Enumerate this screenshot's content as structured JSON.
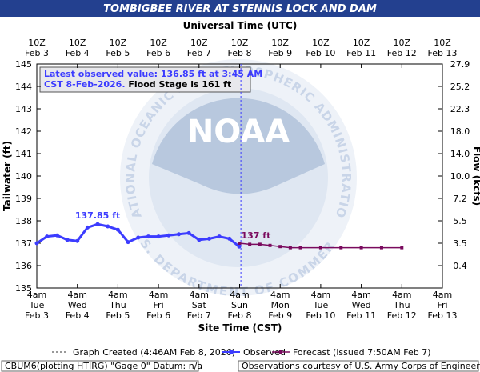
{
  "chart_data": {
    "type": "line",
    "title": "TOMBIGBEE RIVER AT STENNIS LOCK AND DAM",
    "x2_axis_label": "Universal Time (UTC)",
    "x_axis_label": "Site Time (CST)",
    "y_axis_label": "Tailwater (ft)",
    "y2_axis_label": "Flow (kcfs)",
    "xlim": [
      "2026-02-03T04:00",
      "2026-02-13T04:00"
    ],
    "xticks": [
      {
        "value": "2026-02-03T04:00",
        "label": [
          "4am",
          "Tue",
          "Feb 3"
        ]
      },
      {
        "value": "2026-02-04T04:00",
        "label": [
          "4am",
          "Wed",
          "Feb 4"
        ]
      },
      {
        "value": "2026-02-05T04:00",
        "label": [
          "4am",
          "Thu",
          "Feb 5"
        ]
      },
      {
        "value": "2026-02-06T04:00",
        "label": [
          "4am",
          "Fri",
          "Feb 6"
        ]
      },
      {
        "value": "2026-02-07T04:00",
        "label": [
          "4am",
          "Sat",
          "Feb 7"
        ]
      },
      {
        "value": "2026-02-08T04:00",
        "label": [
          "4am",
          "Sun",
          "Feb 8"
        ]
      },
      {
        "value": "2026-02-09T04:00",
        "label": [
          "4am",
          "Mon",
          "Feb 9"
        ]
      },
      {
        "value": "2026-02-10T04:00",
        "label": [
          "4am",
          "Tue",
          "Feb 10"
        ]
      },
      {
        "value": "2026-02-11T04:00",
        "label": [
          "4am",
          "Wed",
          "Feb 11"
        ]
      },
      {
        "value": "2026-02-12T04:00",
        "label": [
          "4am",
          "Thu",
          "Feb 12"
        ]
      },
      {
        "value": "2026-02-13T04:00",
        "label": [
          "4am",
          "Fri",
          "Feb 13"
        ]
      }
    ],
    "x2ticks": [
      {
        "value": "2026-02-03T04:00",
        "label": [
          "10Z",
          "Feb 3"
        ]
      },
      {
        "value": "2026-02-04T04:00",
        "label": [
          "10Z",
          "Feb 4"
        ]
      },
      {
        "value": "2026-02-05T04:00",
        "label": [
          "10Z",
          "Feb 5"
        ]
      },
      {
        "value": "2026-02-06T04:00",
        "label": [
          "10Z",
          "Feb 6"
        ]
      },
      {
        "value": "2026-02-07T04:00",
        "label": [
          "10Z",
          "Feb 7"
        ]
      },
      {
        "value": "2026-02-08T04:00",
        "label": [
          "10Z",
          "Feb 8"
        ]
      },
      {
        "value": "2026-02-09T04:00",
        "label": [
          "10Z",
          "Feb 9"
        ]
      },
      {
        "value": "2026-02-10T04:00",
        "label": [
          "10Z",
          "Feb 10"
        ]
      },
      {
        "value": "2026-02-11T04:00",
        "label": [
          "10Z",
          "Feb 11"
        ]
      },
      {
        "value": "2026-02-12T04:00",
        "label": [
          "10Z",
          "Feb 12"
        ]
      },
      {
        "value": "2026-02-13T04:00",
        "label": [
          "10Z",
          "Feb 13"
        ]
      }
    ],
    "ylim": [
      135,
      145
    ],
    "yticks": [
      135,
      136,
      137,
      138,
      139,
      140,
      141,
      142,
      143,
      144,
      145
    ],
    "y2ticks": [
      0.4,
      3.5,
      5.5,
      7.2,
      {
        "value": 10,
        "label": "10.0"
      },
      {
        "value": 14,
        "label": "14.0"
      },
      {
        "value": 18,
        "label": "18.0"
      },
      22.3,
      25.2,
      27.9
    ],
    "grid": false,
    "created_time": "2026-02-08T04:46",
    "series": [
      {
        "name": "Observed",
        "color": "#3c3cff",
        "x": [
          "2026-02-03T04:00",
          "2026-02-03T10:00",
          "2026-02-03T16:00",
          "2026-02-03T22:00",
          "2026-02-04T04:00",
          "2026-02-04T10:00",
          "2026-02-04T16:00",
          "2026-02-04T22:00",
          "2026-02-05T04:00",
          "2026-02-05T10:00",
          "2026-02-05T16:00",
          "2026-02-05T22:00",
          "2026-02-06T04:00",
          "2026-02-06T10:00",
          "2026-02-06T16:00",
          "2026-02-06T22:00",
          "2026-02-07T04:00",
          "2026-02-07T10:00",
          "2026-02-07T16:00",
          "2026-02-07T22:00",
          "2026-02-08T03:45"
        ],
        "values": [
          137.0,
          137.3,
          137.35,
          137.15,
          137.1,
          137.7,
          137.85,
          137.75,
          137.6,
          137.05,
          137.25,
          137.3,
          137.3,
          137.35,
          137.4,
          137.45,
          137.15,
          137.2,
          137.3,
          137.2,
          136.85
        ]
      },
      {
        "name": "Forecast (issued 7:50AM Feb 7)",
        "color": "#7a0a5e",
        "x": [
          "2026-02-08T04:00",
          "2026-02-08T10:00",
          "2026-02-08T16:00",
          "2026-02-08T22:00",
          "2026-02-09T04:00",
          "2026-02-09T10:00",
          "2026-02-09T16:00",
          "2026-02-10T04:00",
          "2026-02-10T16:00",
          "2026-02-11T04:00",
          "2026-02-11T16:00",
          "2026-02-12T04:00"
        ],
        "values": [
          137.0,
          136.95,
          136.95,
          136.9,
          136.85,
          136.8,
          136.8,
          136.8,
          136.8,
          136.8,
          136.8,
          136.8
        ]
      }
    ],
    "annotations": [
      "137.85 ft",
      "137 ft"
    ],
    "info": {
      "line1": "Latest observed value: 136.85 ft at 3:45 AM",
      "line2a": "CST 8-Feb-2026.",
      "line2b": "Flood Stage is 161 ft"
    },
    "legend_created": "Graph Created (4:46AM Feb 8, 2026)",
    "watermark": {
      "logo": "NOAA",
      "upper": "NATIONAL OCEANIC AND ATMOSPHERIC ADMINISTRATION",
      "lower": "U.S. DEPARTMENT OF COMMERCE"
    },
    "footer": {
      "left": "CBUM6(plotting HTIRG) \"Gage 0\" Datum: n/a",
      "right": "Observations courtesy of U.S. Army Corps of Engineers"
    }
  }
}
